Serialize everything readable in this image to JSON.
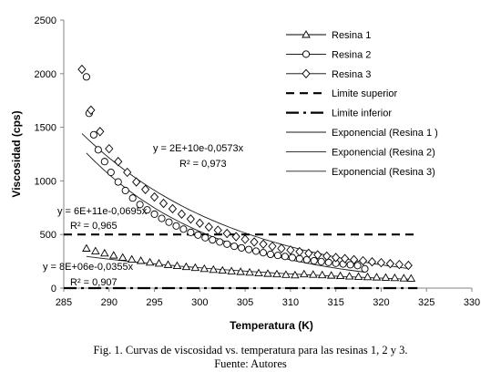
{
  "chart_data": {
    "type": "scatter",
    "xlabel": "Temperatura  (K)",
    "ylabel": "Viscosidad (cps)",
    "xlim": [
      285,
      330
    ],
    "ylim": [
      0,
      2500
    ],
    "xticks": [
      285,
      290,
      295,
      300,
      305,
      310,
      315,
      320,
      325,
      330
    ],
    "yticks": [
      0,
      500,
      1000,
      1500,
      2000,
      2500
    ],
    "grid": false,
    "legend_position": "right",
    "series": [
      {
        "name": "Resina 1",
        "marker": "triangle",
        "x": [
          287.5,
          288.5,
          289.5,
          290.5,
          291.5,
          292.5,
          293.5,
          294.5,
          295.5,
          296.5,
          297.5,
          298.5,
          299.5,
          300.5,
          301.5,
          302.5,
          303.5,
          304.5,
          305.5,
          306.5,
          307.5,
          308.5,
          309.5,
          310.5,
          311.5,
          312.5,
          313.5,
          314.5,
          315.5,
          316.5,
          317.5,
          318.5,
          319.5,
          320.5,
          321.5,
          322.5,
          323.3
        ],
        "y": [
          370,
          345,
          325,
          305,
          285,
          268,
          255,
          240,
          230,
          218,
          208,
          198,
          190,
          180,
          172,
          165,
          158,
          152,
          146,
          140,
          135,
          130,
          125,
          121,
          130,
          126,
          122,
          118,
          114,
          110,
          107,
          104,
          101,
          98,
          95,
          92,
          90
        ]
      },
      {
        "name": "Resina 2",
        "marker": "circle",
        "x": [
          287.5,
          287.8,
          288.3,
          288.8,
          289.5,
          290.2,
          291,
          291.8,
          292.6,
          293.4,
          294.2,
          295,
          295.8,
          296.6,
          297.4,
          298.2,
          299,
          299.8,
          300.6,
          301.4,
          302.2,
          303,
          303.8,
          304.6,
          305.4,
          306.2,
          307,
          307.8,
          308.6,
          309.4,
          310.2,
          311,
          311.8,
          312.6,
          313.4,
          314.2,
          315,
          315.8,
          316.6,
          317.4,
          318.2
        ],
        "y": [
          1970,
          1630,
          1430,
          1290,
          1180,
          1080,
          990,
          910,
          840,
          780,
          730,
          690,
          650,
          615,
          580,
          550,
          520,
          495,
          470,
          450,
          430,
          410,
          390,
          375,
          360,
          345,
          330,
          315,
          305,
          295,
          285,
          275,
          265,
          255,
          248,
          240,
          232,
          225,
          218,
          210,
          180
        ]
      },
      {
        "name": "Resina 3",
        "marker": "diamond",
        "x": [
          287,
          288,
          289,
          290,
          291,
          292,
          293,
          294,
          295,
          296,
          297,
          298,
          299,
          300,
          301,
          302,
          303,
          304,
          305,
          306,
          307,
          308,
          309,
          310,
          311,
          312,
          313,
          314,
          315,
          316,
          317,
          318,
          319,
          320,
          321,
          322,
          323
        ],
        "y": [
          2040,
          1660,
          1460,
          1300,
          1180,
          1080,
          990,
          920,
          850,
          790,
          740,
          690,
          645,
          605,
          570,
          540,
          510,
          480,
          455,
          430,
          410,
          390,
          370,
          355,
          340,
          325,
          310,
          298,
          285,
          275,
          265,
          255,
          245,
          237,
          228,
          220,
          212
        ]
      }
    ],
    "reference_lines": [
      {
        "name": "Limite superior",
        "y": 500,
        "style": "dash"
      },
      {
        "name": "Limite inferior",
        "y": 0,
        "style": "dashdot"
      }
    ],
    "trendlines": [
      {
        "name": "Exponencial (Resina 1 )",
        "a": 8000000,
        "b": -0.0355,
        "x_range": [
          287.5,
          323.3
        ]
      },
      {
        "name": "Exponencial (Resina 2)",
        "a": 600000000000,
        "b": -0.0695,
        "x_range": [
          287.5,
          318.2
        ]
      },
      {
        "name": "Exponencial (Resina 3)",
        "a": 20000000000,
        "b": -0.0573,
        "x_range": [
          287,
          323
        ]
      }
    ],
    "annotations": [
      {
        "text": "y = 2E+10e-0,0573x"
      },
      {
        "text": "R² = 0,973"
      },
      {
        "text": "y = 6E+11e-0,0695x"
      },
      {
        "text": "R² = 0,965"
      },
      {
        "text": "y = 8E+06e-0,0355x"
      },
      {
        "text": "R² = 0,907"
      }
    ]
  },
  "caption": {
    "line1": "Fig. 1. Curvas de viscosidad vs. temperatura para las resinas 1, 2 y 3.",
    "line2": "Fuente: Autores"
  }
}
